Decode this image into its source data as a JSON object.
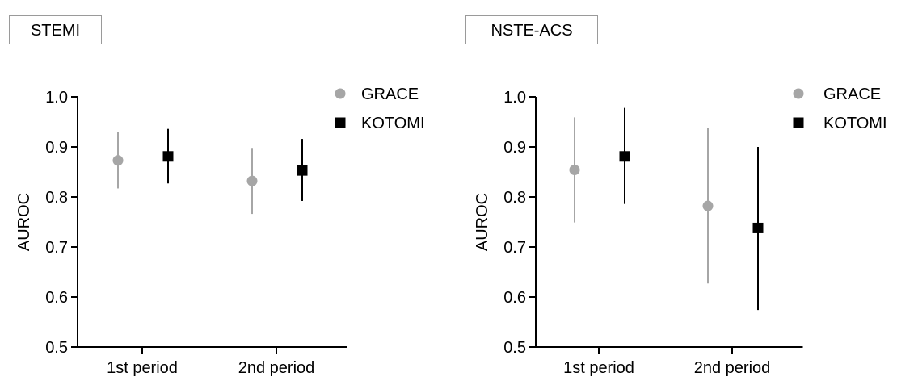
{
  "chart_data": [
    {
      "type": "scatter",
      "title": "STEMI",
      "xlabel": "",
      "ylabel": "AUROC",
      "ylim": [
        0.5,
        1.0
      ],
      "yticks": [
        "0.5",
        "0.6",
        "0.7",
        "0.8",
        "0.9",
        "1.0"
      ],
      "categories": [
        "1st period",
        "2nd period"
      ],
      "legend_position": "top-right",
      "series": [
        {
          "name": "GRACE",
          "color": "#a6a6a6",
          "marker": "circle",
          "values": [
            0.873,
            0.832
          ],
          "lower": [
            0.817,
            0.766
          ],
          "upper": [
            0.93,
            0.898
          ]
        },
        {
          "name": "KOTOMI",
          "color": "#000000",
          "marker": "square",
          "values": [
            0.881,
            0.853
          ],
          "lower": [
            0.827,
            0.792
          ],
          "upper": [
            0.936,
            0.916
          ]
        }
      ]
    },
    {
      "type": "scatter",
      "title": "NSTE-ACS",
      "xlabel": "",
      "ylabel": "AUROC",
      "ylim": [
        0.5,
        1.0
      ],
      "yticks": [
        "0.5",
        "0.6",
        "0.7",
        "0.8",
        "0.9",
        "1.0"
      ],
      "categories": [
        "1st period",
        "2nd period"
      ],
      "legend_position": "top-right",
      "series": [
        {
          "name": "GRACE",
          "color": "#a6a6a6",
          "marker": "circle",
          "values": [
            0.854,
            0.782
          ],
          "lower": [
            0.749,
            0.627
          ],
          "upper": [
            0.959,
            0.938
          ]
        },
        {
          "name": "KOTOMI",
          "color": "#000000",
          "marker": "square",
          "values": [
            0.881,
            0.738
          ],
          "lower": [
            0.786,
            0.574
          ],
          "upper": [
            0.978,
            0.9
          ]
        }
      ]
    }
  ]
}
